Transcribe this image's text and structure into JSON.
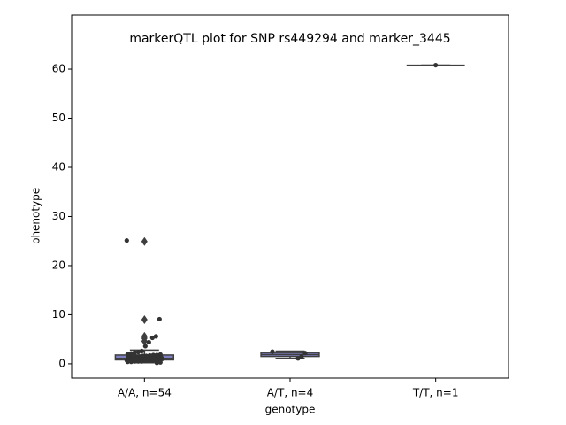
{
  "chart_data": {
    "type": "box",
    "title": "markerQTL plot for SNP rs449294 and marker_3445",
    "xlabel": "genotype",
    "ylabel": "phenotype",
    "categories": [
      "A/A, n=54",
      "A/T, n=4",
      "T/T, n=1"
    ],
    "boxes": [
      {
        "whislo": 0.2,
        "q1": 0.8,
        "med": 1.1,
        "q3": 1.8,
        "whishi": 2.8,
        "fliers": [
          24.9,
          9.0,
          5.6,
          5.2,
          4.6
        ]
      },
      {
        "whislo": 1.1,
        "q1": 1.5,
        "med": 1.9,
        "q3": 2.3,
        "whishi": 2.6,
        "fliers": []
      },
      {
        "whislo": 60.8,
        "q1": 60.8,
        "med": 60.8,
        "q3": 60.8,
        "whishi": 60.8,
        "fliers": []
      }
    ],
    "points": [
      [
        25.1,
        9.1,
        5.6,
        5.3,
        4.4,
        3.6,
        2.6,
        2.4,
        2.3,
        2.1,
        2.0,
        1.9,
        1.8,
        1.8,
        1.7,
        1.6,
        1.6,
        1.5,
        1.5,
        1.4,
        1.4,
        1.3,
        1.3,
        1.2,
        1.2,
        1.2,
        1.1,
        1.1,
        1.1,
        1.0,
        1.0,
        1.0,
        0.9,
        0.9,
        0.9,
        0.9,
        0.8,
        0.8,
        0.8,
        0.8,
        0.7,
        0.7,
        0.7,
        0.7,
        0.6,
        0.6,
        0.6,
        0.5,
        0.5,
        0.5,
        0.4,
        0.4,
        0.3,
        0.2
      ],
      [
        2.5,
        2.2,
        1.5,
        1.1
      ],
      [
        60.8
      ]
    ],
    "ylim": [
      -2.9,
      71
    ],
    "yticks": [
      0,
      10,
      20,
      30,
      40,
      50,
      60
    ],
    "box_color": "#7f7fbf",
    "edge_color": "#3f3f3f",
    "point_color": "#333333"
  }
}
